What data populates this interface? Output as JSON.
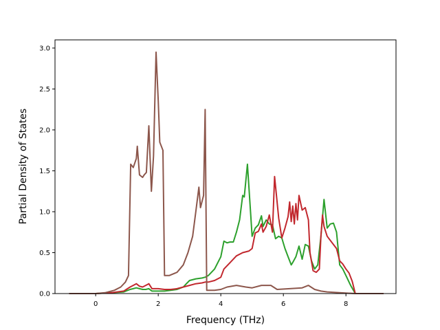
{
  "chart_data": {
    "type": "line",
    "title": "",
    "xlabel": "Frequency (THz)",
    "ylabel": "Partial Density of States",
    "xlim": [
      -1.3,
      9.6
    ],
    "ylim": [
      0,
      3.1
    ],
    "xticks": [
      0,
      2,
      4,
      6,
      8
    ],
    "xtick_labels": [
      "0",
      "2",
      "4",
      "6",
      "8"
    ],
    "yticks": [
      0,
      0.5,
      1.0,
      1.5,
      2.0,
      2.5,
      3.0
    ],
    "ytick_labels": [
      "0.0",
      "0.5",
      "1.0",
      "1.5",
      "2.0",
      "2.5",
      "3.0"
    ],
    "grid": false,
    "legend": "none",
    "series": [
      {
        "color": "#2ca02c",
        "points": [
          [
            -0.85,
            0
          ],
          [
            0,
            0
          ],
          [
            0.5,
            0.01
          ],
          [
            0.9,
            0.02
          ],
          [
            1.1,
            0.05
          ],
          [
            1.2,
            0.06
          ],
          [
            1.3,
            0.07
          ],
          [
            1.4,
            0.06
          ],
          [
            1.5,
            0.05
          ],
          [
            1.6,
            0.05
          ],
          [
            1.7,
            0.06
          ],
          [
            1.8,
            0.03
          ],
          [
            2.0,
            0.03
          ],
          [
            2.2,
            0.03
          ],
          [
            2.4,
            0.04
          ],
          [
            2.6,
            0.05
          ],
          [
            2.8,
            0.08
          ],
          [
            2.9,
            0.12
          ],
          [
            3.0,
            0.16
          ],
          [
            3.2,
            0.18
          ],
          [
            3.4,
            0.19
          ],
          [
            3.5,
            0.2
          ],
          [
            3.6,
            0.22
          ],
          [
            3.8,
            0.3
          ],
          [
            4.0,
            0.45
          ],
          [
            4.1,
            0.64
          ],
          [
            4.2,
            0.62
          ],
          [
            4.3,
            0.63
          ],
          [
            4.4,
            0.63
          ],
          [
            4.5,
            0.75
          ],
          [
            4.6,
            0.9
          ],
          [
            4.7,
            1.2
          ],
          [
            4.75,
            1.18
          ],
          [
            4.85,
            1.58
          ],
          [
            4.95,
            1.0
          ],
          [
            5.0,
            0.7
          ],
          [
            5.1,
            0.8
          ],
          [
            5.2,
            0.84
          ],
          [
            5.3,
            0.95
          ],
          [
            5.35,
            0.82
          ],
          [
            5.45,
            0.9
          ],
          [
            5.55,
            0.85
          ],
          [
            5.65,
            0.84
          ],
          [
            5.75,
            0.67
          ],
          [
            5.85,
            0.7
          ],
          [
            5.95,
            0.68
          ],
          [
            6.05,
            0.55
          ],
          [
            6.15,
            0.45
          ],
          [
            6.25,
            0.35
          ],
          [
            6.3,
            0.38
          ],
          [
            6.4,
            0.45
          ],
          [
            6.5,
            0.58
          ],
          [
            6.55,
            0.5
          ],
          [
            6.6,
            0.42
          ],
          [
            6.7,
            0.6
          ],
          [
            6.8,
            0.58
          ],
          [
            6.9,
            0.4
          ],
          [
            7.0,
            0.3
          ],
          [
            7.1,
            0.35
          ],
          [
            7.2,
            0.7
          ],
          [
            7.3,
            1.15
          ],
          [
            7.4,
            0.8
          ],
          [
            7.5,
            0.85
          ],
          [
            7.6,
            0.86
          ],
          [
            7.7,
            0.75
          ],
          [
            7.8,
            0.35
          ],
          [
            7.9,
            0.3
          ],
          [
            8.0,
            0.22
          ],
          [
            8.15,
            0.1
          ],
          [
            8.3,
            0
          ],
          [
            9.2,
            0
          ]
        ]
      },
      {
        "color": "#c1272d",
        "points": [
          [
            -0.85,
            0
          ],
          [
            0,
            0
          ],
          [
            0.5,
            0.01
          ],
          [
            0.9,
            0.03
          ],
          [
            1.1,
            0.08
          ],
          [
            1.2,
            0.1
          ],
          [
            1.3,
            0.12
          ],
          [
            1.4,
            0.09
          ],
          [
            1.5,
            0.08
          ],
          [
            1.6,
            0.1
          ],
          [
            1.7,
            0.12
          ],
          [
            1.8,
            0.06
          ],
          [
            2.0,
            0.06
          ],
          [
            2.2,
            0.05
          ],
          [
            2.4,
            0.05
          ],
          [
            2.6,
            0.06
          ],
          [
            2.8,
            0.08
          ],
          [
            3.0,
            0.1
          ],
          [
            3.2,
            0.12
          ],
          [
            3.4,
            0.13
          ],
          [
            3.5,
            0.14
          ],
          [
            3.6,
            0.14
          ],
          [
            3.8,
            0.16
          ],
          [
            4.0,
            0.2
          ],
          [
            4.1,
            0.3
          ],
          [
            4.3,
            0.38
          ],
          [
            4.5,
            0.46
          ],
          [
            4.7,
            0.5
          ],
          [
            4.9,
            0.52
          ],
          [
            5.0,
            0.55
          ],
          [
            5.1,
            0.74
          ],
          [
            5.2,
            0.76
          ],
          [
            5.3,
            0.85
          ],
          [
            5.35,
            0.75
          ],
          [
            5.45,
            0.82
          ],
          [
            5.55,
            0.96
          ],
          [
            5.65,
            0.75
          ],
          [
            5.72,
            1.43
          ],
          [
            5.85,
            0.92
          ],
          [
            5.95,
            0.68
          ],
          [
            6.05,
            0.8
          ],
          [
            6.15,
            0.94
          ],
          [
            6.2,
            1.12
          ],
          [
            6.25,
            0.88
          ],
          [
            6.3,
            1.07
          ],
          [
            6.35,
            0.85
          ],
          [
            6.4,
            1.1
          ],
          [
            6.45,
            0.9
          ],
          [
            6.5,
            1.2
          ],
          [
            6.6,
            1.02
          ],
          [
            6.7,
            1.05
          ],
          [
            6.8,
            0.9
          ],
          [
            6.85,
            0.5
          ],
          [
            6.95,
            0.28
          ],
          [
            7.05,
            0.26
          ],
          [
            7.15,
            0.3
          ],
          [
            7.2,
            0.7
          ],
          [
            7.25,
            0.96
          ],
          [
            7.3,
            0.82
          ],
          [
            7.4,
            0.7
          ],
          [
            7.5,
            0.65
          ],
          [
            7.6,
            0.6
          ],
          [
            7.7,
            0.55
          ],
          [
            7.8,
            0.4
          ],
          [
            7.9,
            0.36
          ],
          [
            8.0,
            0.3
          ],
          [
            8.1,
            0.25
          ],
          [
            8.2,
            0.15
          ],
          [
            8.3,
            0
          ],
          [
            9.2,
            0
          ]
        ]
      },
      {
        "color": "#8c564b",
        "points": [
          [
            -0.85,
            0
          ],
          [
            0,
            0
          ],
          [
            0.3,
            0.01
          ],
          [
            0.6,
            0.04
          ],
          [
            0.8,
            0.08
          ],
          [
            0.95,
            0.14
          ],
          [
            1.05,
            0.22
          ],
          [
            1.12,
            1.58
          ],
          [
            1.2,
            1.54
          ],
          [
            1.3,
            1.65
          ],
          [
            1.33,
            1.8
          ],
          [
            1.4,
            1.45
          ],
          [
            1.5,
            1.42
          ],
          [
            1.55,
            1.45
          ],
          [
            1.62,
            1.48
          ],
          [
            1.7,
            2.05
          ],
          [
            1.78,
            1.25
          ],
          [
            1.85,
            1.68
          ],
          [
            1.9,
            2.48
          ],
          [
            1.93,
            2.95
          ],
          [
            2.0,
            2.35
          ],
          [
            2.05,
            1.85
          ],
          [
            2.15,
            1.75
          ],
          [
            2.2,
            0.22
          ],
          [
            2.35,
            0.22
          ],
          [
            2.6,
            0.26
          ],
          [
            2.8,
            0.35
          ],
          [
            2.95,
            0.5
          ],
          [
            3.1,
            0.7
          ],
          [
            3.2,
            1.0
          ],
          [
            3.3,
            1.3
          ],
          [
            3.35,
            1.05
          ],
          [
            3.45,
            1.2
          ],
          [
            3.5,
            2.25
          ],
          [
            3.55,
            0.04
          ],
          [
            3.8,
            0.04
          ],
          [
            4.0,
            0.05
          ],
          [
            4.2,
            0.08
          ],
          [
            4.5,
            0.1
          ],
          [
            4.8,
            0.08
          ],
          [
            5.0,
            0.07
          ],
          [
            5.3,
            0.1
          ],
          [
            5.6,
            0.1
          ],
          [
            5.8,
            0.05
          ],
          [
            6.2,
            0.06
          ],
          [
            6.6,
            0.07
          ],
          [
            6.8,
            0.1
          ],
          [
            7.0,
            0.05
          ],
          [
            7.2,
            0.03
          ],
          [
            7.4,
            0.02
          ],
          [
            7.8,
            0.01
          ],
          [
            8.3,
            0
          ],
          [
            9.2,
            0
          ]
        ]
      }
    ]
  }
}
